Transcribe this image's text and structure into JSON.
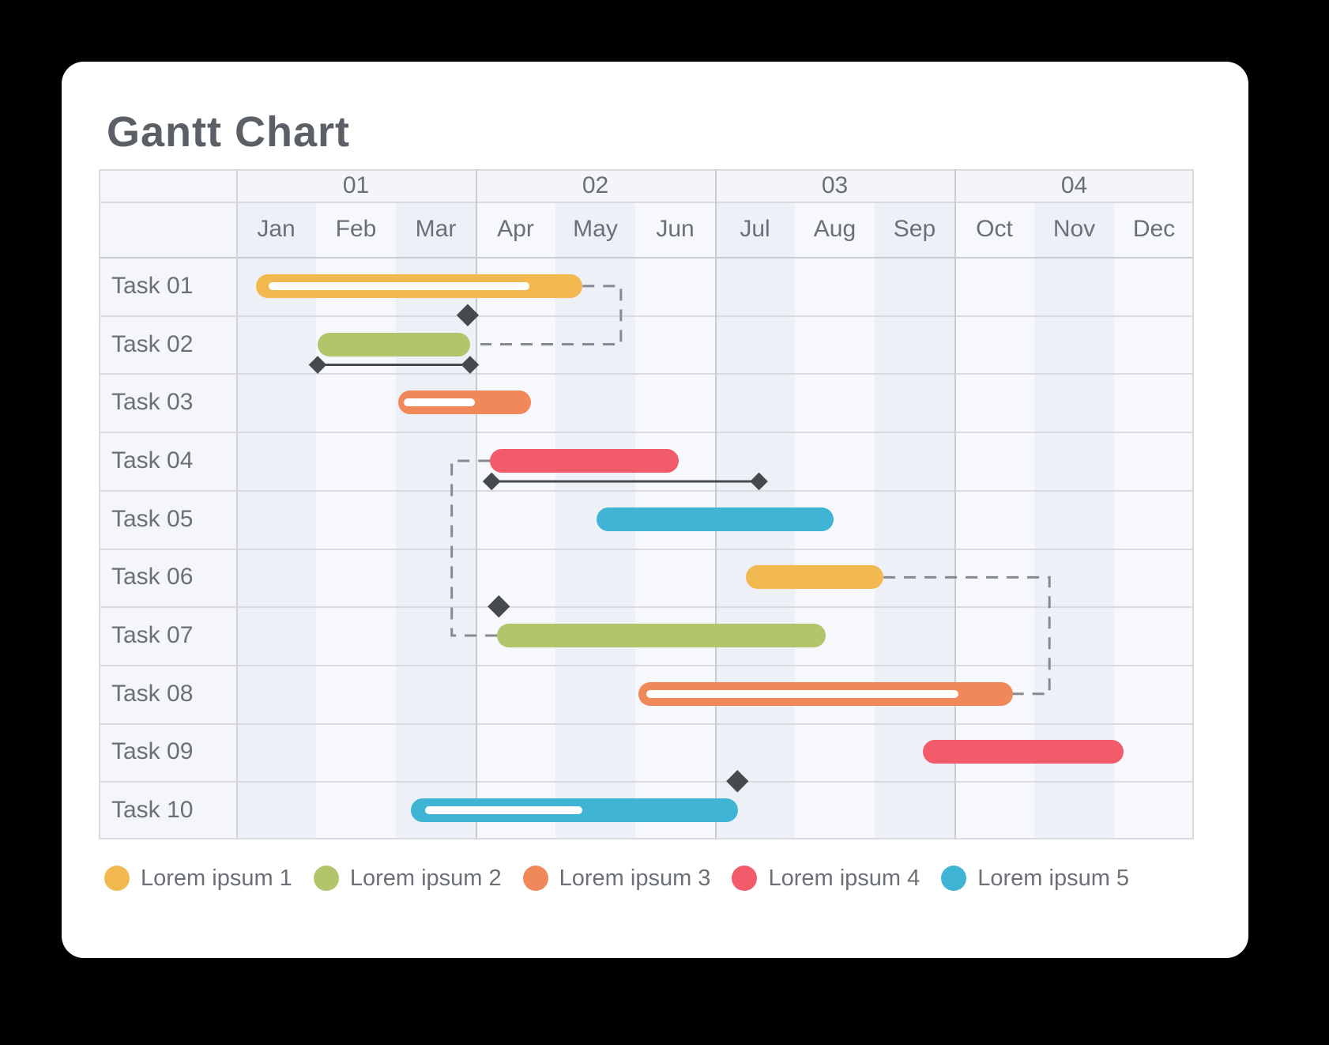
{
  "title": "Gantt Chart",
  "colors": {
    "page_bg": "#000000",
    "card_bg": "#ffffff",
    "title_text": "#5b6067",
    "label_text": "#6b7077",
    "grid_line": "#d9dbe1",
    "grid_line_strong": "#c9ccd3",
    "label_divider": "#d2d5db",
    "stripe_odd_month": "#edf0f7",
    "stripe_even_month": "#f7f8fc",
    "header_bg": "#f3f5f9",
    "label_col_bg": "#f4f6fa",
    "connector": "#86898f",
    "marker": "#46494e",
    "progress_stripe": "#ffffff"
  },
  "palette": [
    "#F2B950",
    "#B3C56A",
    "#F0885A",
    "#F25B69",
    "#3FB4D4"
  ],
  "header": {
    "quarters": [
      "01",
      "02",
      "03",
      "04"
    ],
    "months": [
      "Jan",
      "Feb",
      "Mar",
      "Apr",
      "May",
      "Jun",
      "Jul",
      "Aug",
      "Sep",
      "Oct",
      "Nov",
      "Dec"
    ]
  },
  "chart_data": {
    "type": "gantt",
    "title": "Gantt Chart",
    "x_axis": {
      "unit": "months",
      "range": [
        0,
        12
      ],
      "quarters": [
        "01",
        "02",
        "03",
        "04"
      ],
      "months": [
        "Jan",
        "Feb",
        "Mar",
        "Apr",
        "May",
        "Jun",
        "Jul",
        "Aug",
        "Sep",
        "Oct",
        "Nov",
        "Dec"
      ]
    },
    "tasks": [
      {
        "name": "Task 01",
        "color": "#F2B950",
        "start": 0.25,
        "end": 4.34,
        "progress": {
          "start": 0.41,
          "end": 3.67
        }
      },
      {
        "name": "Task 02",
        "color": "#B3C56A",
        "start": 1.02,
        "end": 2.93,
        "range_marker": {
          "start": 1.02,
          "end": 2.93
        }
      },
      {
        "name": "Task 03",
        "color": "#F0885A",
        "start": 2.03,
        "end": 3.69,
        "progress": {
          "start": 2.1,
          "end": 2.99
        }
      },
      {
        "name": "Task 04",
        "color": "#F25B69",
        "start": 3.18,
        "end": 5.54,
        "range_marker": {
          "start": 3.2,
          "end": 6.55
        }
      },
      {
        "name": "Task 05",
        "color": "#3FB4D4",
        "start": 4.51,
        "end": 7.49
      },
      {
        "name": "Task 06",
        "color": "#F2B950",
        "start": 6.39,
        "end": 8.11
      },
      {
        "name": "Task 07",
        "color": "#B3C56A",
        "start": 3.27,
        "end": 7.39
      },
      {
        "name": "Task 08",
        "color": "#F0885A",
        "start": 5.04,
        "end": 9.73,
        "progress": {
          "start": 5.14,
          "end": 9.05
        }
      },
      {
        "name": "Task 09",
        "color": "#F25B69",
        "start": 8.6,
        "end": 11.12
      },
      {
        "name": "Task 10",
        "color": "#3FB4D4",
        "start": 2.19,
        "end": 6.29,
        "progress": {
          "start": 2.37,
          "end": 4.34
        }
      }
    ],
    "milestones": [
      {
        "month": 2.9,
        "after_row": 1
      },
      {
        "month": 3.29,
        "after_row": 6
      },
      {
        "month": 6.28,
        "after_row": 9
      }
    ],
    "dependencies": [
      {
        "points": [
          [
            4.34,
            0
          ],
          [
            4.82,
            0
          ],
          [
            4.82,
            1
          ],
          [
            3.06,
            1
          ]
        ]
      },
      {
        "points": [
          [
            3.18,
            3
          ],
          [
            2.7,
            3
          ],
          [
            2.7,
            6
          ],
          [
            3.27,
            6
          ]
        ]
      },
      {
        "points": [
          [
            8.11,
            5
          ],
          [
            10.19,
            5
          ],
          [
            10.19,
            7
          ],
          [
            9.73,
            7
          ]
        ]
      }
    ]
  },
  "legend": [
    {
      "label": "Lorem ipsum 1",
      "color": "#F2B950"
    },
    {
      "label": "Lorem ipsum 2",
      "color": "#B3C56A"
    },
    {
      "label": "Lorem ipsum 3",
      "color": "#F0885A"
    },
    {
      "label": "Lorem ipsum 4",
      "color": "#F25B69"
    },
    {
      "label": "Lorem ipsum 5",
      "color": "#3FB4D4"
    }
  ]
}
